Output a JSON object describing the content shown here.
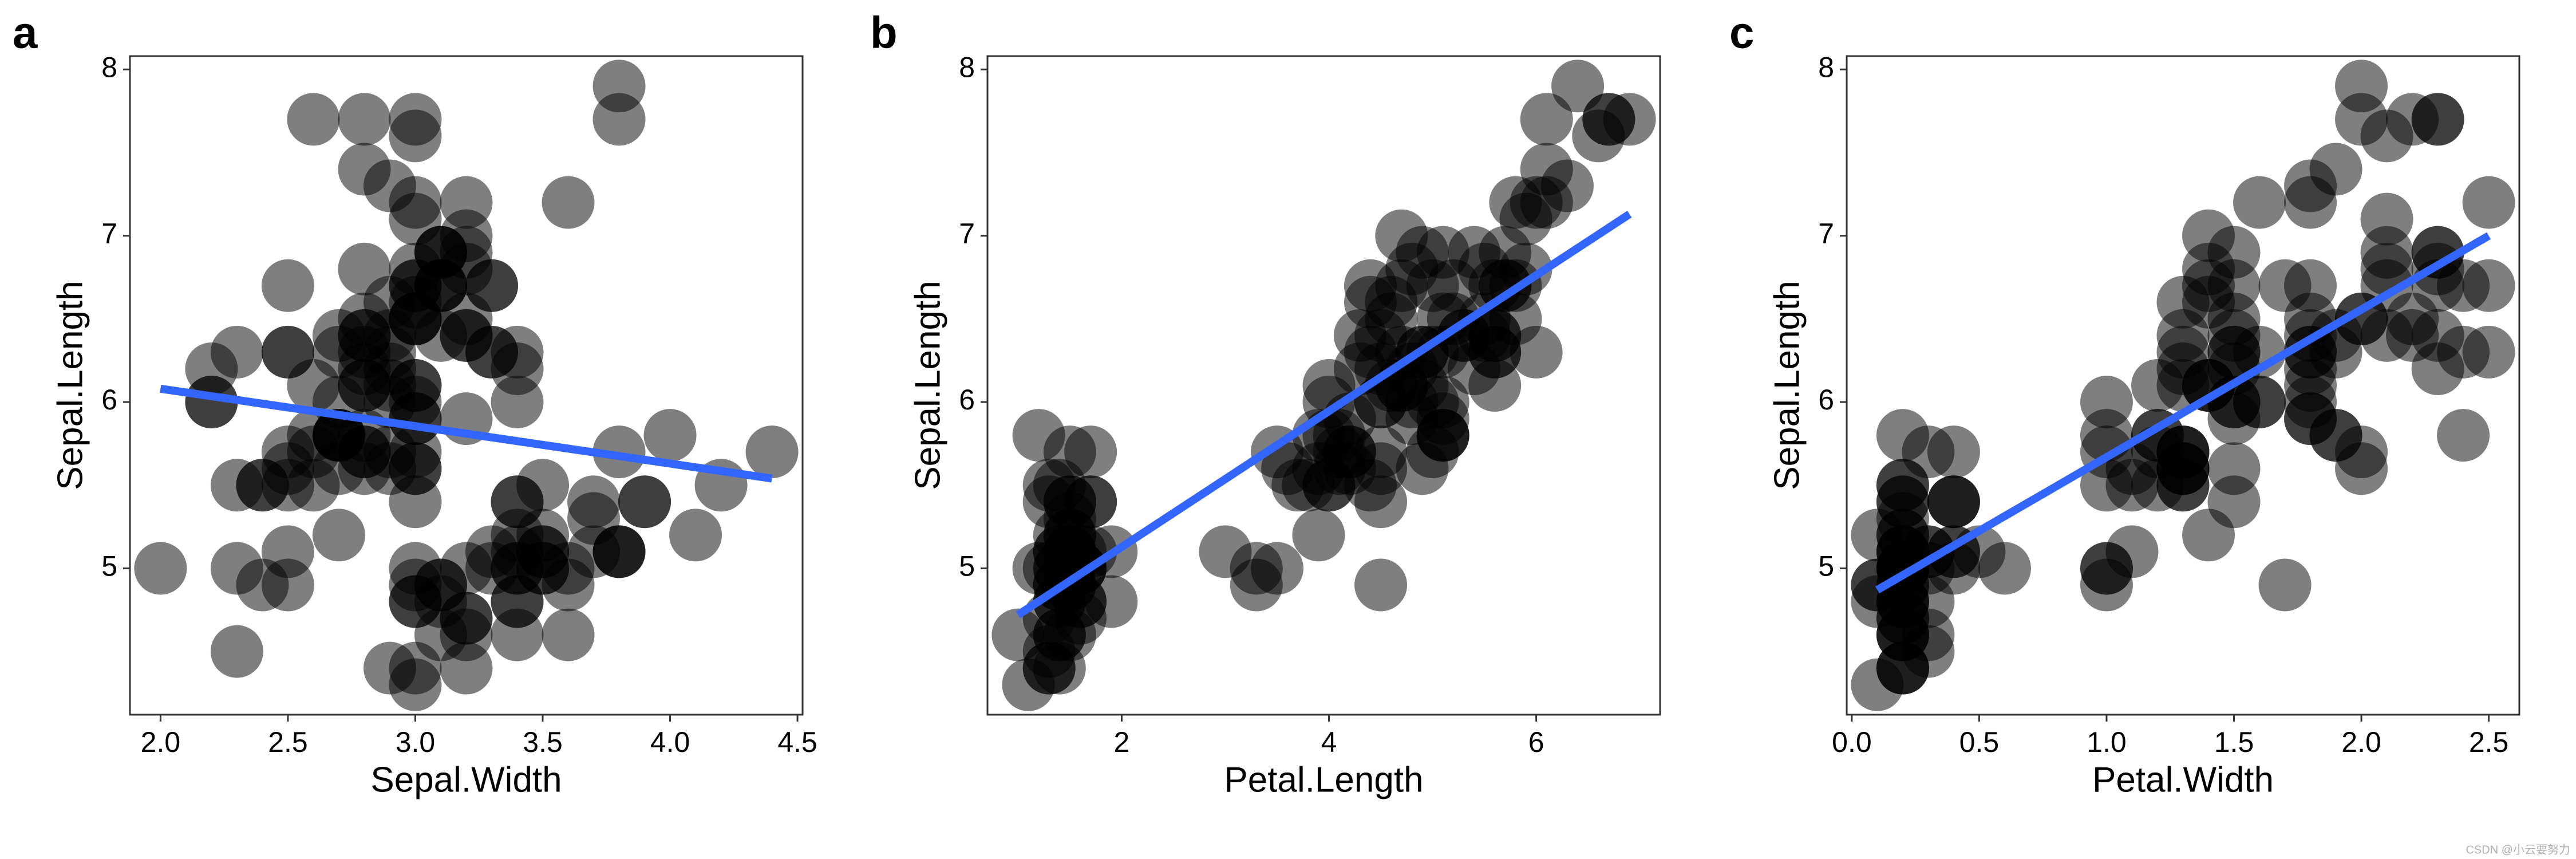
{
  "chart_data": [
    {
      "type": "scatter",
      "panel": "a",
      "xlabel": "Sepal.Width",
      "ylabel": "Sepal.Length",
      "xlim": [
        1.88,
        4.52
      ],
      "ylim": [
        4.12,
        8.08
      ],
      "xticks": [
        {
          "value": 2,
          "label": "2.0"
        },
        2.5,
        {
          "value": 3,
          "label": "3.0"
        },
        3.5,
        {
          "value": 4,
          "label": "4.0"
        },
        4.5
      ],
      "yticks": [
        5,
        6,
        7,
        8
      ],
      "point_color": "#000000",
      "point_alpha": 0.5,
      "x": [
        3.5,
        3.0,
        3.2,
        3.1,
        3.6,
        3.9,
        3.4,
        3.4,
        2.9,
        3.1,
        3.7,
        3.4,
        3.0,
        3.0,
        4.0,
        4.4,
        3.9,
        3.5,
        3.8,
        3.8,
        3.4,
        3.7,
        3.6,
        3.3,
        3.4,
        3.0,
        3.4,
        3.5,
        3.4,
        3.2,
        3.1,
        3.4,
        4.1,
        4.2,
        3.1,
        3.2,
        3.5,
        3.6,
        3.0,
        3.4,
        3.5,
        2.3,
        3.2,
        3.5,
        3.8,
        3.0,
        3.8,
        3.2,
        3.7,
        3.3,
        3.2,
        3.2,
        3.1,
        2.3,
        2.8,
        2.8,
        3.3,
        2.4,
        2.9,
        2.7,
        2.0,
        3.0,
        2.2,
        2.9,
        2.9,
        3.1,
        3.0,
        2.7,
        2.2,
        2.5,
        3.2,
        2.8,
        2.5,
        2.8,
        2.9,
        3.0,
        2.8,
        3.0,
        2.9,
        2.6,
        2.4,
        2.4,
        2.7,
        2.7,
        3.0,
        3.4,
        3.1,
        2.3,
        3.0,
        2.5,
        2.6,
        3.0,
        2.6,
        2.3,
        2.7,
        3.0,
        2.9,
        2.9,
        2.5,
        2.8,
        3.3,
        2.7,
        3.0,
        2.9,
        3.0,
        3.0,
        2.5,
        2.9,
        2.5,
        3.6,
        3.2,
        2.7,
        3.0,
        2.5,
        2.8,
        3.2,
        3.0,
        3.8,
        2.6,
        2.2,
        3.2,
        2.8,
        2.8,
        2.7,
        3.3,
        3.2,
        2.8,
        3.0,
        2.8,
        3.0,
        2.8,
        3.8,
        2.8,
        2.8,
        2.6,
        3.0,
        3.4,
        3.1,
        3.0,
        3.1,
        3.1,
        3.1,
        2.7,
        3.2,
        3.3,
        3.0,
        2.5,
        3.0,
        3.4,
        3.0
      ],
      "y": [
        5.1,
        4.9,
        4.7,
        4.6,
        5.0,
        5.4,
        4.6,
        5.0,
        4.4,
        4.9,
        5.4,
        4.8,
        4.8,
        4.3,
        5.8,
        5.7,
        5.4,
        5.1,
        5.7,
        5.1,
        5.4,
        5.1,
        4.6,
        5.1,
        4.8,
        5.0,
        5.0,
        5.2,
        5.2,
        4.7,
        4.8,
        5.4,
        5.2,
        5.5,
        4.9,
        5.0,
        5.5,
        4.9,
        4.4,
        5.1,
        5.0,
        4.5,
        4.4,
        5.0,
        5.1,
        4.8,
        5.1,
        4.6,
        5.3,
        5.0,
        7.0,
        6.4,
        6.9,
        5.5,
        6.5,
        5.7,
        6.3,
        4.9,
        6.6,
        5.2,
        5.0,
        5.9,
        6.0,
        6.1,
        5.6,
        6.7,
        5.6,
        5.8,
        6.2,
        5.6,
        5.9,
        6.1,
        6.3,
        6.1,
        6.4,
        6.6,
        6.8,
        6.7,
        6.0,
        5.7,
        5.5,
        5.5,
        5.8,
        6.0,
        5.4,
        6.0,
        6.7,
        6.3,
        5.6,
        5.5,
        5.5,
        6.1,
        5.8,
        5.0,
        5.6,
        5.7,
        5.7,
        6.2,
        5.1,
        5.7,
        6.3,
        5.8,
        7.1,
        6.3,
        6.5,
        7.6,
        4.9,
        7.3,
        6.7,
        7.2,
        6.5,
        6.4,
        6.8,
        5.7,
        5.8,
        6.4,
        6.5,
        7.7,
        7.7,
        6.0,
        6.9,
        5.6,
        7.7,
        6.3,
        6.7,
        7.2,
        6.2,
        6.1,
        6.4,
        7.2,
        7.4,
        7.9,
        6.4,
        6.3,
        6.1,
        7.7,
        6.3,
        6.4,
        6.0,
        6.9,
        6.7,
        6.9,
        5.8,
        6.8,
        6.7,
        6.7,
        6.3,
        6.5,
        6.2,
        5.9
      ],
      "line": {
        "color": "#3366ff",
        "x": [
          2.0,
          4.4
        ],
        "y": [
          6.08,
          5.54
        ]
      }
    },
    {
      "type": "scatter",
      "panel": "b",
      "xlabel": "Petal.Length",
      "ylabel": "Sepal.Length",
      "xlim": [
        0.705,
        7.195
      ],
      "ylim": [
        4.12,
        8.08
      ],
      "xticks": [
        2,
        4,
        6
      ],
      "yticks": [
        5,
        6,
        7,
        8
      ],
      "point_color": "#000000",
      "point_alpha": 0.5,
      "x": [
        1.4,
        1.4,
        1.3,
        1.5,
        1.4,
        1.7,
        1.4,
        1.5,
        1.4,
        1.5,
        1.5,
        1.6,
        1.4,
        1.1,
        1.2,
        1.5,
        1.3,
        1.4,
        1.7,
        1.5,
        1.7,
        1.5,
        1.0,
        1.7,
        1.9,
        1.6,
        1.6,
        1.5,
        1.4,
        1.6,
        1.6,
        1.5,
        1.5,
        1.4,
        1.5,
        1.2,
        1.3,
        1.4,
        1.3,
        1.5,
        1.3,
        1.3,
        1.3,
        1.6,
        1.9,
        1.4,
        1.6,
        1.4,
        1.5,
        1.4,
        4.7,
        4.5,
        4.9,
        4.0,
        4.6,
        4.5,
        4.7,
        3.3,
        4.6,
        3.9,
        3.5,
        4.2,
        4.0,
        4.7,
        3.6,
        4.4,
        4.5,
        4.1,
        4.5,
        3.9,
        4.8,
        4.0,
        4.9,
        4.7,
        4.3,
        4.4,
        4.8,
        5.0,
        4.5,
        3.5,
        3.8,
        3.7,
        3.9,
        5.1,
        4.5,
        4.5,
        4.7,
        4.4,
        4.1,
        4.0,
        4.4,
        4.6,
        4.0,
        3.3,
        4.2,
        4.2,
        4.2,
        4.3,
        3.0,
        4.1,
        6.0,
        5.1,
        5.9,
        5.6,
        5.8,
        6.6,
        4.5,
        6.3,
        5.8,
        6.1,
        5.1,
        5.3,
        5.5,
        5.0,
        5.1,
        5.3,
        5.5,
        6.7,
        6.9,
        5.0,
        5.7,
        4.9,
        6.7,
        4.9,
        5.7,
        6.0,
        4.8,
        4.9,
        5.6,
        5.8,
        6.1,
        6.4,
        5.6,
        5.1,
        5.6,
        6.1,
        5.6,
        5.5,
        4.8,
        5.4,
        5.6,
        5.1,
        5.1,
        5.9,
        5.7,
        5.2,
        5.0,
        5.2,
        5.4,
        5.1
      ],
      "y": [
        5.1,
        4.9,
        4.7,
        4.6,
        5.0,
        5.4,
        4.6,
        5.0,
        4.4,
        4.9,
        5.4,
        4.8,
        4.8,
        4.3,
        5.8,
        5.7,
        5.4,
        5.1,
        5.7,
        5.1,
        5.4,
        5.1,
        4.6,
        5.1,
        4.8,
        5.0,
        5.0,
        5.2,
        5.2,
        4.7,
        4.8,
        5.4,
        5.2,
        5.5,
        4.9,
        5.0,
        5.5,
        4.9,
        4.4,
        5.1,
        5.0,
        4.5,
        4.4,
        5.0,
        5.1,
        4.8,
        5.1,
        4.6,
        5.3,
        5.0,
        7.0,
        6.4,
        6.9,
        5.5,
        6.5,
        5.7,
        6.3,
        4.9,
        6.6,
        5.2,
        5.0,
        5.9,
        6.0,
        6.1,
        5.6,
        6.7,
        5.6,
        5.8,
        6.2,
        5.6,
        5.9,
        6.1,
        6.3,
        6.1,
        6.4,
        6.6,
        6.8,
        6.7,
        6.0,
        5.7,
        5.5,
        5.5,
        5.8,
        6.0,
        5.4,
        6.0,
        6.7,
        6.3,
        5.6,
        5.5,
        5.5,
        6.1,
        5.8,
        5.0,
        5.6,
        5.7,
        5.7,
        6.2,
        5.1,
        5.7,
        6.3,
        5.8,
        7.1,
        6.3,
        6.5,
        7.6,
        4.9,
        7.3,
        6.7,
        7.2,
        6.5,
        6.4,
        6.8,
        5.7,
        5.8,
        6.4,
        6.5,
        7.7,
        7.7,
        6.0,
        6.9,
        5.6,
        7.7,
        6.3,
        6.7,
        7.2,
        6.2,
        6.1,
        6.4,
        7.2,
        7.4,
        7.9,
        6.4,
        6.3,
        6.1,
        7.7,
        6.3,
        6.4,
        6.0,
        6.9,
        6.7,
        6.9,
        5.8,
        6.8,
        6.7,
        6.7,
        6.3,
        6.5,
        6.2,
        5.9
      ],
      "line": {
        "color": "#3366ff",
        "x": [
          1.0,
          6.9
        ],
        "y": [
          4.72,
          7.13
        ]
      }
    },
    {
      "type": "scatter",
      "panel": "c",
      "xlabel": "Petal.Width",
      "ylabel": "Sepal.Length",
      "xlim": [
        -0.02,
        2.62
      ],
      "ylim": [
        4.12,
        8.08
      ],
      "xticks": [
        {
          "value": 0,
          "label": "0.0"
        },
        0.5,
        {
          "value": 1,
          "label": "1.0"
        },
        1.5,
        {
          "value": 2,
          "label": "2.0"
        },
        2.5
      ],
      "yticks": [
        5,
        6,
        7,
        8
      ],
      "point_color": "#000000",
      "point_alpha": 0.5,
      "x": [
        0.2,
        0.2,
        0.2,
        0.2,
        0.2,
        0.4,
        0.3,
        0.2,
        0.2,
        0.1,
        0.2,
        0.2,
        0.1,
        0.1,
        0.2,
        0.4,
        0.4,
        0.3,
        0.3,
        0.3,
        0.2,
        0.4,
        0.2,
        0.5,
        0.2,
        0.2,
        0.4,
        0.2,
        0.2,
        0.2,
        0.2,
        0.4,
        0.1,
        0.2,
        0.2,
        0.2,
        0.2,
        0.1,
        0.2,
        0.2,
        0.3,
        0.3,
        0.2,
        0.6,
        0.4,
        0.3,
        0.2,
        0.2,
        0.2,
        0.2,
        1.4,
        1.5,
        1.5,
        1.3,
        1.5,
        1.3,
        1.6,
        1.0,
        1.3,
        1.4,
        1.0,
        1.5,
        1.0,
        1.4,
        1.3,
        1.4,
        1.5,
        1.0,
        1.5,
        1.1,
        1.8,
        1.3,
        1.5,
        1.2,
        1.3,
        1.4,
        1.4,
        1.7,
        1.5,
        1.0,
        1.1,
        1.0,
        1.2,
        1.6,
        1.5,
        1.6,
        1.5,
        1.3,
        1.3,
        1.3,
        1.2,
        1.4,
        1.2,
        1.0,
        1.3,
        1.2,
        1.3,
        1.3,
        1.1,
        1.3,
        2.5,
        1.9,
        2.1,
        1.8,
        2.2,
        2.1,
        1.7,
        1.8,
        1.8,
        2.5,
        2.0,
        1.9,
        2.1,
        2.0,
        2.4,
        2.3,
        1.8,
        2.2,
        2.3,
        1.5,
        2.3,
        2.0,
        2.0,
        1.8,
        2.1,
        1.8,
        1.8,
        1.8,
        2.1,
        1.6,
        1.9,
        2.0,
        2.2,
        1.5,
        1.4,
        2.3,
        2.4,
        1.8,
        1.8,
        2.1,
        2.4,
        2.3,
        1.9,
        2.3,
        2.5,
        2.3,
        1.9,
        2.0,
        2.3,
        1.8
      ],
      "y": [
        5.1,
        4.9,
        4.7,
        4.6,
        5.0,
        5.4,
        4.6,
        5.0,
        4.4,
        4.9,
        5.4,
        4.8,
        4.8,
        4.3,
        5.8,
        5.7,
        5.4,
        5.1,
        5.7,
        5.1,
        5.4,
        5.1,
        4.6,
        5.1,
        4.8,
        5.0,
        5.0,
        5.2,
        5.2,
        4.7,
        4.8,
        5.4,
        5.2,
        5.5,
        4.9,
        5.0,
        5.5,
        4.9,
        4.4,
        5.1,
        5.0,
        4.5,
        4.4,
        5.0,
        5.1,
        4.8,
        5.1,
        4.6,
        5.3,
        5.0,
        7.0,
        6.4,
        6.9,
        5.5,
        6.5,
        5.7,
        6.3,
        4.9,
        6.6,
        5.2,
        5.0,
        5.9,
        6.0,
        6.1,
        5.6,
        6.7,
        5.6,
        5.8,
        6.2,
        5.6,
        5.9,
        6.1,
        6.3,
        6.1,
        6.4,
        6.6,
        6.8,
        6.7,
        6.0,
        5.7,
        5.5,
        5.5,
        5.8,
        6.0,
        5.4,
        6.0,
        6.7,
        6.3,
        5.6,
        5.5,
        5.5,
        6.1,
        5.8,
        5.0,
        5.6,
        5.7,
        5.7,
        6.2,
        5.1,
        5.7,
        6.3,
        5.8,
        7.1,
        6.3,
        6.5,
        7.6,
        4.9,
        7.3,
        6.7,
        7.2,
        6.5,
        6.4,
        6.8,
        5.7,
        5.8,
        6.4,
        6.5,
        7.7,
        7.7,
        6.0,
        6.9,
        5.6,
        7.7,
        6.3,
        6.7,
        7.2,
        6.2,
        6.1,
        6.4,
        7.2,
        7.4,
        7.9,
        6.4,
        6.3,
        6.1,
        7.7,
        6.3,
        6.4,
        6.0,
        6.9,
        6.7,
        6.9,
        5.8,
        6.8,
        6.7,
        6.7,
        6.3,
        6.5,
        6.2,
        5.9
      ],
      "line": {
        "color": "#3366ff",
        "x": [
          0.1,
          2.5
        ],
        "y": [
          4.87,
          7.0
        ]
      }
    }
  ],
  "watermark": "CSDN @小云要努力"
}
